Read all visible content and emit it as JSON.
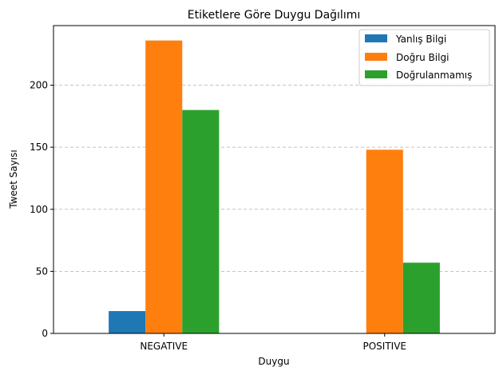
{
  "chart_data": {
    "type": "bar",
    "title": "Etiketlere Göre Duygu Dağılımı",
    "xlabel": "Duygu",
    "ylabel": "Tweet Sayısı",
    "categories": [
      "NEGATIVE",
      "POSITIVE"
    ],
    "series": [
      {
        "name": "Yanlış Bilgi",
        "color": "#1f77b4",
        "values": [
          18,
          0
        ]
      },
      {
        "name": "Doğru Bilgi",
        "color": "#ff7f0e",
        "values": [
          236,
          148
        ]
      },
      {
        "name": "Doğrulanmamış",
        "color": "#2ca02c",
        "values": [
          180,
          57
        ]
      }
    ],
    "ylim": [
      0,
      248
    ],
    "yticks": [
      "0",
      "50",
      "100",
      "150",
      "200"
    ],
    "grid": "y-dashed",
    "legend_position": "top-right"
  }
}
